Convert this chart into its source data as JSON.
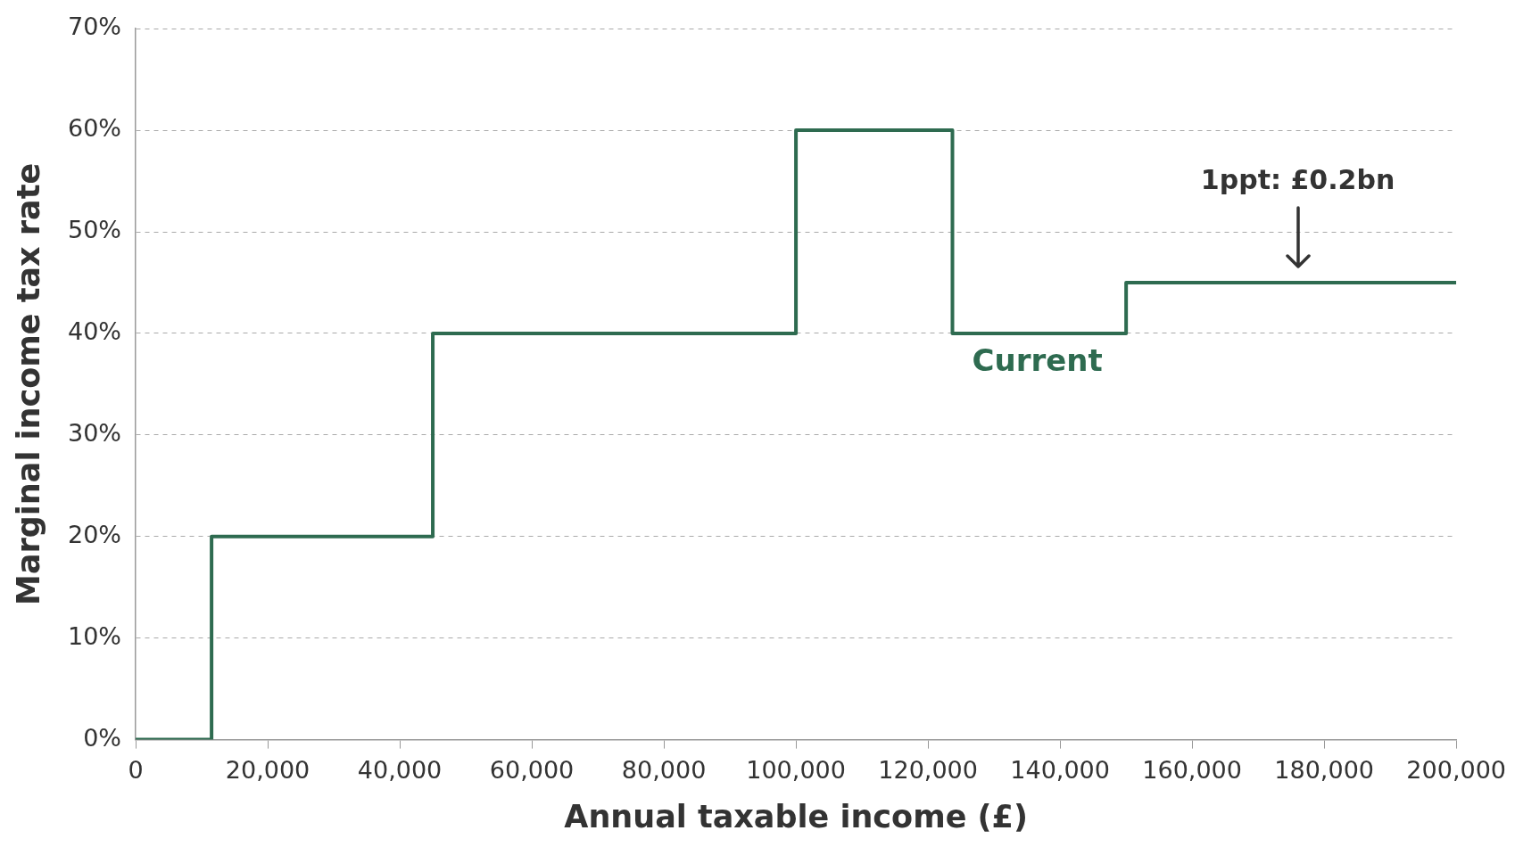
{
  "chart_data": {
    "type": "step",
    "xlabel": "Annual taxable income (£)",
    "ylabel": "Marginal income tax rate",
    "x": [
      0,
      11500,
      45000,
      100000,
      123700,
      150000,
      200000
    ],
    "series": [
      {
        "name": "Current",
        "color": "#2e6b50",
        "values": [
          0,
          20,
          40,
          60,
          40,
          45,
          45
        ]
      }
    ],
    "xlim": [
      0,
      200000
    ],
    "xticks": [
      0,
      {
        "value": 20000,
        "label": "20,000"
      },
      {
        "value": 40000,
        "label": "40,000"
      },
      {
        "value": 60000,
        "label": "60,000"
      },
      {
        "value": 80000,
        "label": "80,000"
      },
      {
        "value": 100000,
        "label": "100,000"
      },
      {
        "value": 120000,
        "label": "120,000"
      },
      {
        "value": 140000,
        "label": "140,000"
      },
      {
        "value": 160000,
        "label": "160,000"
      },
      {
        "value": 180000,
        "label": "180,000"
      },
      {
        "value": 200000,
        "label": "200,000"
      }
    ],
    "ylim": [
      0,
      70
    ],
    "yticks": [
      {
        "value": 0,
        "label": "0%"
      },
      {
        "value": 10,
        "label": "10%"
      },
      {
        "value": 20,
        "label": "20%"
      },
      {
        "value": 30,
        "label": "30%"
      },
      {
        "value": 40,
        "label": "40%"
      },
      {
        "value": 50,
        "label": "50%"
      },
      {
        "value": 60,
        "label": "60%"
      },
      {
        "value": 70,
        "label": "70%"
      }
    ],
    "annotations": [
      "1ppt: £0.2bn"
    ],
    "grid": "y",
    "legend": false,
    "marker": "none",
    "line_style": "solid"
  }
}
